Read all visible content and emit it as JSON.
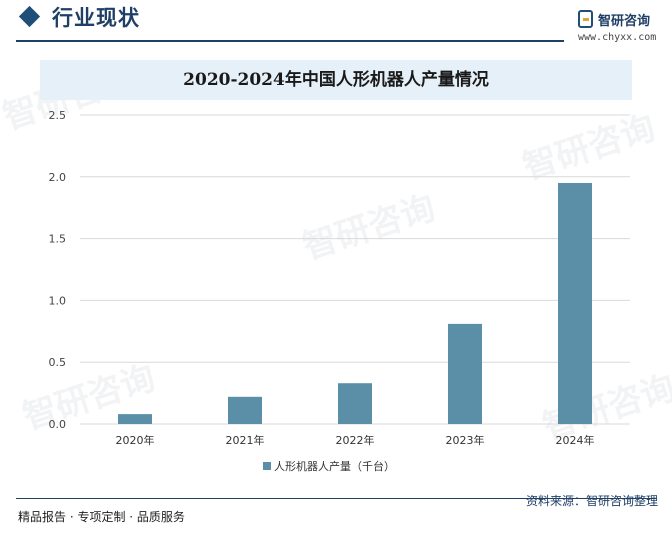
{
  "header": {
    "section_title": "行业现状",
    "logo_name": "智研咨询",
    "logo_url": "www.chyxx.com"
  },
  "footer": {
    "services": "精品报告 · 专项定制 · 品质服务",
    "source": "资料来源：智研咨询整理"
  },
  "watermark_text": "智研咨询",
  "colors": {
    "bar": "#5b8fa8",
    "header": "#1f3f66",
    "title_band": "#e6f0f8"
  },
  "chart_data": {
    "type": "bar",
    "title": "2020-2024年中国人形机器人产量情况",
    "categories": [
      "2020年",
      "2021年",
      "2022年",
      "2023年",
      "2024年"
    ],
    "series": [
      {
        "name": "人形机器人产量（千台）",
        "values": [
          0.08,
          0.22,
          0.33,
          0.81,
          1.95
        ]
      }
    ],
    "ylim": [
      0,
      2.5
    ],
    "yticks": [
      "0.0",
      "0.5",
      "1.0",
      "1.5",
      "2.0",
      "2.5"
    ],
    "grid": true,
    "legend_position": "bottom"
  }
}
